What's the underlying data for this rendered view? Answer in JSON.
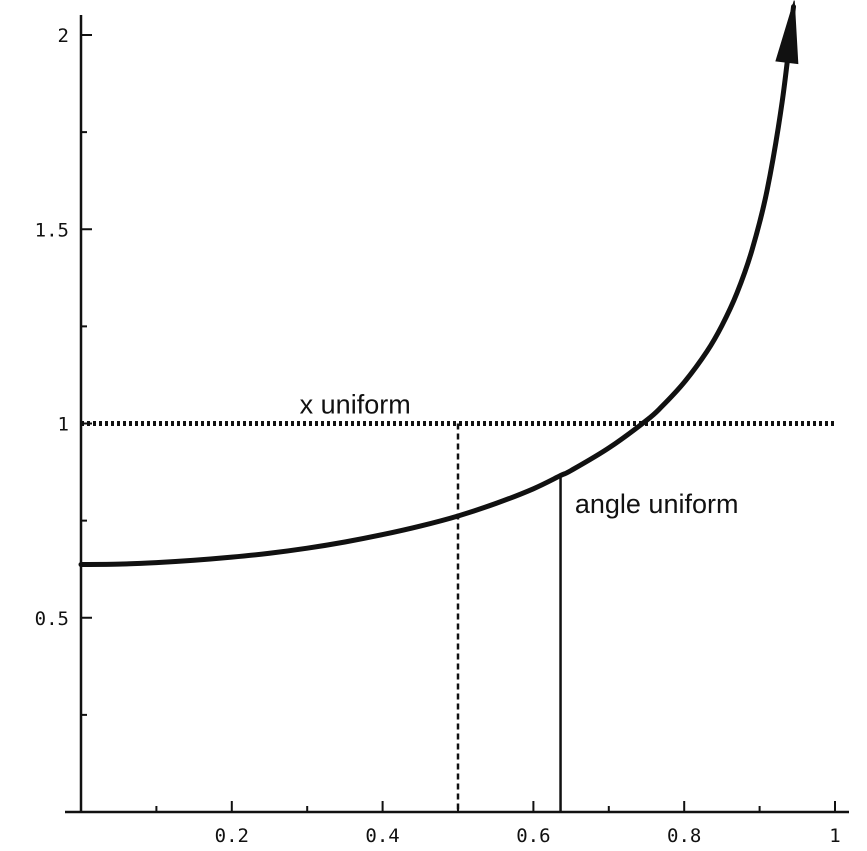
{
  "chart_data": {
    "type": "line",
    "title": "",
    "xlabel": "",
    "ylabel": "",
    "xlim": [
      0,
      1
    ],
    "ylim": [
      0,
      2
    ],
    "x_ticks": [
      {
        "value": 0.2,
        "label": "0.2"
      },
      {
        "value": 0.4,
        "label": "0.4"
      },
      {
        "value": 0.6,
        "label": "0.6"
      },
      {
        "value": 0.8,
        "label": "0.8"
      },
      {
        "value": 1,
        "label": "1"
      }
    ],
    "y_ticks": [
      {
        "value": 0.5,
        "label": "0.5"
      },
      {
        "value": 1,
        "label": "1"
      },
      {
        "value": 1.5,
        "label": "1.5"
      },
      {
        "value": 2,
        "label": "2"
      }
    ],
    "series": [
      {
        "name": "x uniform",
        "style": "dotted",
        "x": [
          0,
          1
        ],
        "y": [
          1,
          1
        ],
        "marker_x": 0.5
      },
      {
        "name": "angle uniform",
        "style": "solid-thick",
        "arrow_end": true,
        "x": [
          0,
          0.05,
          0.1,
          0.15,
          0.2,
          0.25,
          0.3,
          0.35,
          0.4,
          0.45,
          0.5,
          0.55,
          0.6,
          0.636,
          0.65,
          0.7,
          0.75,
          0.77,
          0.8,
          0.83,
          0.85,
          0.87,
          0.89,
          0.91,
          0.93,
          0.945
        ],
        "y": [
          0.637,
          0.638,
          0.642,
          0.648,
          0.656,
          0.666,
          0.679,
          0.695,
          0.714,
          0.736,
          0.762,
          0.794,
          0.832,
          0.866,
          0.879,
          0.937,
          1.008,
          1.043,
          1.106,
          1.185,
          1.252,
          1.336,
          1.447,
          1.601,
          1.829,
          2.073
        ],
        "marker_x": 0.636
      }
    ],
    "grid": false,
    "legend": "none"
  }
}
